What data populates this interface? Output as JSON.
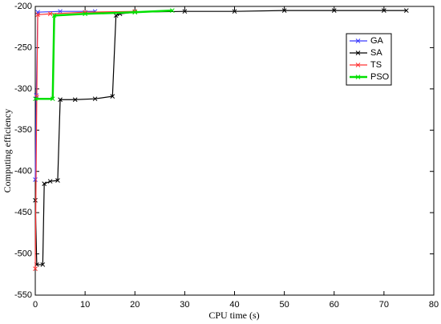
{
  "chart_data": {
    "type": "line",
    "x_label": "CPU time (s)",
    "y_label": "Computing efficiency",
    "xlim": [
      0,
      80
    ],
    "xticks": [
      0,
      10,
      20,
      30,
      40,
      50,
      60,
      70,
      80
    ],
    "ylim": [
      -550,
      -200
    ],
    "yticks": [
      -550,
      -500,
      -450,
      -400,
      -350,
      -300,
      -250,
      -200
    ],
    "grid": false,
    "legend": "upper right",
    "series": [
      {
        "name": "GA",
        "color": "#3b3bff",
        "x": [
          0,
          0.2,
          0.5,
          5,
          12
        ],
        "values": [
          -410,
          -308,
          -207,
          -206,
          -206
        ]
      },
      {
        "name": "SA",
        "color": "#000000",
        "x": [
          0,
          0.3,
          1.5,
          1.8,
          3,
          4.5,
          5,
          8,
          12,
          15.5,
          16.2,
          17,
          20,
          30,
          40,
          50,
          60,
          70,
          74.5
        ],
        "values": [
          -435,
          -513,
          -513,
          -415,
          -412,
          -411,
          -313,
          -313,
          -312,
          -309,
          -211,
          -209,
          -207,
          -206,
          -206,
          -205,
          -205,
          -205,
          -205
        ]
      },
      {
        "name": "TS",
        "color": "#ff3333",
        "x": [
          0,
          0.3,
          0.5,
          3,
          10,
          20
        ],
        "values": [
          -518,
          -310,
          -210,
          -209,
          -207,
          -206
        ]
      },
      {
        "name": "PSO",
        "color": "#00e000",
        "x": [
          0,
          3.5,
          3.8,
          10,
          20,
          27.5
        ],
        "values": [
          -312,
          -312,
          -211,
          -209,
          -207,
          -205
        ]
      }
    ]
  }
}
